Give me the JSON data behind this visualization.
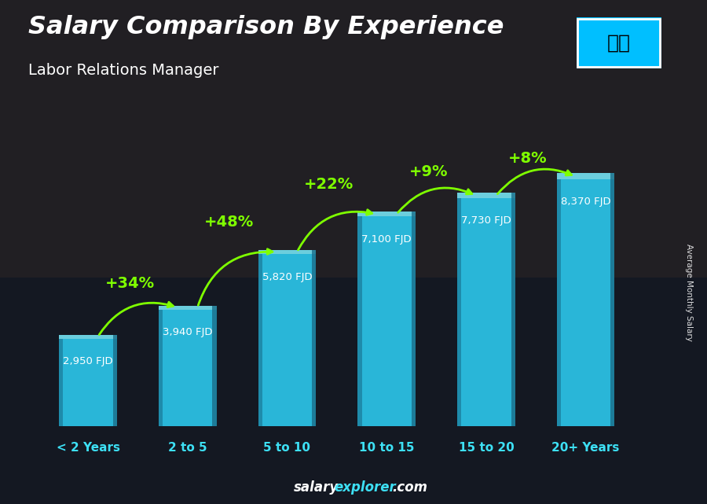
{
  "title": "Salary Comparison By Experience",
  "subtitle": "Labor Relations Manager",
  "categories": [
    "< 2 Years",
    "2 to 5",
    "5 to 10",
    "10 to 15",
    "15 to 20",
    "20+ Years"
  ],
  "values": [
    2950,
    3940,
    5820,
    7100,
    7730,
    8370
  ],
  "value_labels": [
    "2,950 FJD",
    "3,940 FJD",
    "5,820 FJD",
    "7,100 FJD",
    "7,730 FJD",
    "8,370 FJD"
  ],
  "pct_labels": [
    "+34%",
    "+48%",
    "+22%",
    "+9%",
    "+8%"
  ],
  "bar_color": "#29b6d8",
  "bar_color_light": "#4dd8f0",
  "bar_color_dark": "#1a7a99",
  "bar_color_top": "#7aeeff",
  "bg_color": "#1a1c2a",
  "text_color_white": "#ffffff",
  "text_color_cyan": "#3de0f5",
  "text_color_green": "#7fff00",
  "footer_salary_color": "#ffffff",
  "footer_explorer_color": "#3de0f5",
  "side_label": "Average Monthly Salary",
  "ylim": [
    0,
    10000
  ],
  "bar_width": 0.58
}
